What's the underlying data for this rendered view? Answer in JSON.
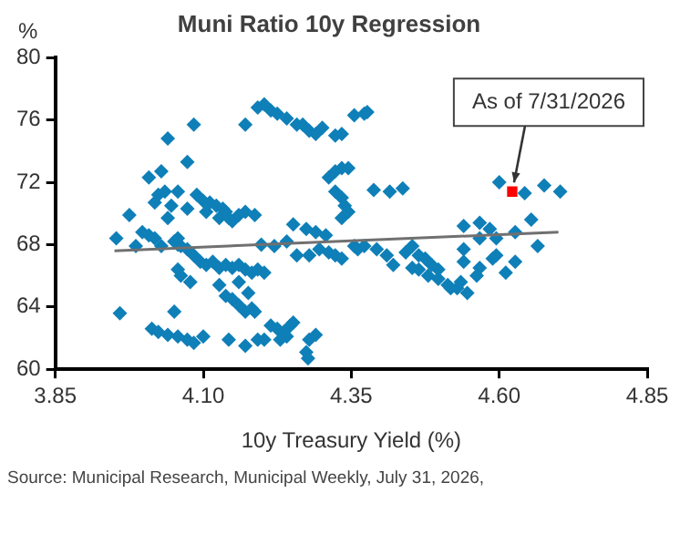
{
  "chart_data": {
    "type": "scatter",
    "title": "Muni Ratio 10y Regression",
    "ylabel": "%",
    "xlabel": "10y Treasury Yield (%)",
    "xlim": [
      3.85,
      4.85
    ],
    "xticks": [
      {
        "value": 3.85,
        "label": "3.85"
      },
      {
        "value": 4.1,
        "label": "4.10"
      },
      {
        "value": 4.35,
        "label": "4.35"
      },
      {
        "value": 4.6,
        "label": "4.60"
      },
      {
        "value": 4.85,
        "label": "4.85"
      }
    ],
    "ylim": [
      60,
      80
    ],
    "yticks": [
      60,
      64,
      68,
      72,
      76,
      80
    ],
    "grid": false,
    "legend": false,
    "marker": "diamond",
    "annotations": [
      {
        "text": "As of 7/31/2026",
        "x": 4.622,
        "y": 71.4
      },
      "Source: Municipal Research, Municipal Weekly, July 31, 2026,"
    ],
    "series": [
      {
        "color": "#0f7fb8",
        "x": [
          3.953,
          3.975,
          3.959,
          3.986,
          3.997,
          4.008,
          4.018,
          4.029,
          4.051,
          4.062,
          4.057,
          4.008,
          4.029,
          4.04,
          4.073,
          4.084,
          4.024,
          4.035,
          4.018,
          4.057,
          4.046,
          4.073,
          4.04,
          4.089,
          4.1,
          4.111,
          4.122,
          4.133,
          4.138,
          4.143,
          4.149,
          4.16,
          4.171,
          4.187,
          4.127,
          4.105,
          4.057,
          4.073,
          4.084,
          4.095,
          4.105,
          4.116,
          4.127,
          4.138,
          4.149,
          4.16,
          4.171,
          4.182,
          4.192,
          4.203,
          4.057,
          4.062,
          4.078,
          4.127,
          4.138,
          4.149,
          4.16,
          4.176,
          4.16,
          4.171,
          4.182,
          4.187,
          4.051,
          4.013,
          4.024,
          4.04,
          4.057,
          4.073,
          4.084,
          4.1,
          4.143,
          4.171,
          4.192,
          4.203,
          4.214,
          4.225,
          4.236,
          4.247,
          4.241,
          4.252,
          4.23,
          4.279,
          4.274,
          4.277,
          4.29,
          4.171,
          4.192,
          4.203,
          4.214,
          4.225,
          4.241,
          4.258,
          4.268,
          4.279,
          4.29,
          4.301,
          4.323,
          4.334,
          4.355,
          4.312,
          4.323,
          4.334,
          4.345,
          4.323,
          4.334,
          4.339,
          4.345,
          4.334,
          4.198,
          4.22,
          4.241,
          4.252,
          4.258,
          4.274,
          4.279,
          4.29,
          4.296,
          4.307,
          4.312,
          4.323,
          4.334,
          4.355,
          4.361,
          4.372,
          4.377,
          4.388,
          4.415,
          4.437,
          4.372,
          4.393,
          4.41,
          4.421,
          4.442,
          4.453,
          4.464,
          4.475,
          4.453,
          4.464,
          4.48,
          4.497,
          4.513,
          4.529,
          4.546,
          4.486,
          4.497,
          4.518,
          4.535,
          4.54,
          4.567,
          4.584,
          4.595,
          4.567,
          4.627,
          4.654,
          4.665,
          4.54,
          4.54,
          4.567,
          4.562,
          4.589,
          4.595,
          4.627,
          4.611,
          4.6,
          4.643,
          4.676,
          4.703
        ],
        "values": [
          68.4,
          69.9,
          63.6,
          67.9,
          68.8,
          68.6,
          68.4,
          67.9,
          68.2,
          67.9,
          68.4,
          72.3,
          72.7,
          74.8,
          73.3,
          75.7,
          71.2,
          71.4,
          70.7,
          71.4,
          70.5,
          70.3,
          69.7,
          71.2,
          70.8,
          70.7,
          70.5,
          70.3,
          70.1,
          69.7,
          69.5,
          69.9,
          70.1,
          69.9,
          69.7,
          70.1,
          68.0,
          67.7,
          67.3,
          66.9,
          66.7,
          66.9,
          66.5,
          66.7,
          66.5,
          66.7,
          66.4,
          66.2,
          66.4,
          66.2,
          66.4,
          66.0,
          65.6,
          65.4,
          64.7,
          64.5,
          65.6,
          64.9,
          64.1,
          63.7,
          63.9,
          63.7,
          63.7,
          62.6,
          62.4,
          62.2,
          62.1,
          61.9,
          61.7,
          62.1,
          61.9,
          61.5,
          61.9,
          61.9,
          62.8,
          62.6,
          62.4,
          62.8,
          62.1,
          63.0,
          61.9,
          61.9,
          61.1,
          60.7,
          62.2,
          75.7,
          76.8,
          77.0,
          76.6,
          76.4,
          76.1,
          75.7,
          75.7,
          75.3,
          75.1,
          75.5,
          75.0,
          75.1,
          76.3,
          72.3,
          72.7,
          72.9,
          72.9,
          71.4,
          71.0,
          70.5,
          70.1,
          69.7,
          68.0,
          67.9,
          68.2,
          69.3,
          67.3,
          69.0,
          67.3,
          68.8,
          67.7,
          68.6,
          67.5,
          67.3,
          67.1,
          67.9,
          67.7,
          76.4,
          76.5,
          71.5,
          71.4,
          71.6,
          67.9,
          67.7,
          67.3,
          66.7,
          67.5,
          67.9,
          67.3,
          67.1,
          66.5,
          66.4,
          66.0,
          65.8,
          65.4,
          65.2,
          64.9,
          66.7,
          66.4,
          65.2,
          65.6,
          69.2,
          69.4,
          69.0,
          68.4,
          68.4,
          68.8,
          69.6,
          67.9,
          67.7,
          66.9,
          66.5,
          66.0,
          67.1,
          67.3,
          66.9,
          66.2,
          72.0,
          71.3,
          71.8,
          71.4
        ]
      },
      {
        "color": "#ff0000",
        "marker": "square",
        "x": [
          4.622
        ],
        "values": [
          71.4
        ]
      },
      {
        "type": "line",
        "color": "#707070",
        "marker": "none",
        "x": [
          3.95,
          4.7
        ],
        "values": [
          67.6,
          68.8
        ]
      }
    ]
  }
}
